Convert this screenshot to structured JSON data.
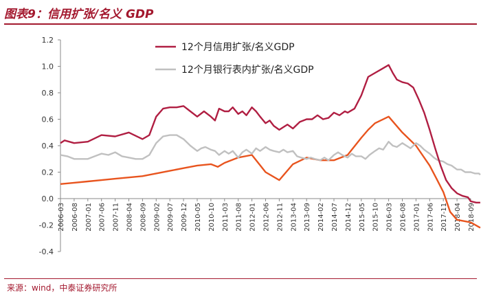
{
  "header": {
    "title": "图表9：信用扩张/名义 GDP"
  },
  "footer": {
    "source": "来源：wind，中泰证券研究所"
  },
  "colors": {
    "brand": "#a3182e",
    "series_credit": "#b01e42",
    "series_bank": "#c0c0c0",
    "series_orange": "#e8541e"
  },
  "chart_data": {
    "type": "line",
    "title": "",
    "xlabel": "",
    "ylabel": "",
    "ylim": [
      -0.4,
      1.2
    ],
    "yticks": [
      1.2,
      1.0,
      0.8,
      0.6,
      0.4,
      0.2,
      0.0,
      -0.2,
      -0.4
    ],
    "x_tick_labels": [
      "2006-03",
      "2006-08",
      "2007-01",
      "2007-06",
      "2007-11",
      "2008-04",
      "2008-09",
      "2009-02",
      "2009-07",
      "2009-12",
      "2010-05",
      "2010-10",
      "2011-03",
      "2011-08",
      "2012-01",
      "2012-06",
      "2012-11",
      "2013-04",
      "2013-09",
      "2014-02",
      "2014-07",
      "2014-12",
      "2015-05",
      "2015-10",
      "2016-03",
      "2016-08",
      "2017-01",
      "2017-06",
      "2017-11",
      "2018-04",
      "2018-09"
    ],
    "grid": false,
    "legend": "top-center",
    "series": [
      {
        "name": "12个月信用扩张/名义GDP",
        "color": "#b01e42",
        "points": [
          [
            0,
            0.42
          ],
          [
            0.3,
            0.44
          ],
          [
            1,
            0.42
          ],
          [
            2,
            0.43
          ],
          [
            3,
            0.48
          ],
          [
            4,
            0.47
          ],
          [
            5,
            0.5
          ],
          [
            6,
            0.45
          ],
          [
            6.5,
            0.48
          ],
          [
            7,
            0.62
          ],
          [
            7.5,
            0.68
          ],
          [
            8,
            0.69
          ],
          [
            8.5,
            0.69
          ],
          [
            9,
            0.7
          ],
          [
            9.5,
            0.66
          ],
          [
            10,
            0.62
          ],
          [
            10.5,
            0.66
          ],
          [
            11,
            0.62
          ],
          [
            11.3,
            0.59
          ],
          [
            11.6,
            0.68
          ],
          [
            12,
            0.66
          ],
          [
            12.3,
            0.66
          ],
          [
            12.6,
            0.69
          ],
          [
            13,
            0.64
          ],
          [
            13.3,
            0.66
          ],
          [
            13.6,
            0.63
          ],
          [
            14,
            0.69
          ],
          [
            14.3,
            0.66
          ],
          [
            14.6,
            0.62
          ],
          [
            15,
            0.57
          ],
          [
            15.3,
            0.59
          ],
          [
            15.6,
            0.55
          ],
          [
            16,
            0.52
          ],
          [
            16.3,
            0.54
          ],
          [
            16.6,
            0.56
          ],
          [
            17,
            0.53
          ],
          [
            17.5,
            0.58
          ],
          [
            18,
            0.6
          ],
          [
            18.4,
            0.6
          ],
          [
            18.8,
            0.63
          ],
          [
            19.2,
            0.6
          ],
          [
            19.6,
            0.61
          ],
          [
            20,
            0.65
          ],
          [
            20.4,
            0.63
          ],
          [
            20.8,
            0.66
          ],
          [
            21,
            0.65
          ],
          [
            21.5,
            0.68
          ],
          [
            22,
            0.78
          ],
          [
            22.5,
            0.92
          ],
          [
            23,
            0.95
          ],
          [
            23.5,
            0.98
          ],
          [
            24,
            1.01
          ],
          [
            24.3,
            0.95
          ],
          [
            24.6,
            0.9
          ],
          [
            25,
            0.88
          ],
          [
            25.4,
            0.87
          ],
          [
            25.8,
            0.84
          ],
          [
            26.2,
            0.75
          ],
          [
            26.6,
            0.65
          ],
          [
            27,
            0.52
          ],
          [
            27.4,
            0.38
          ],
          [
            27.8,
            0.25
          ],
          [
            28.2,
            0.14
          ],
          [
            28.6,
            0.08
          ],
          [
            29,
            0.04
          ],
          [
            29.4,
            0.02
          ],
          [
            29.8,
            0.01
          ],
          [
            30,
            -0.02
          ],
          [
            30.4,
            -0.03
          ],
          [
            30.7,
            -0.03
          ]
        ]
      },
      {
        "name": "12个月银行表内扩张/名义GDP",
        "color": "#c0c0c0",
        "points": [
          [
            0,
            0.33
          ],
          [
            0.5,
            0.32
          ],
          [
            1,
            0.3
          ],
          [
            2,
            0.3
          ],
          [
            2.5,
            0.32
          ],
          [
            3,
            0.34
          ],
          [
            3.5,
            0.33
          ],
          [
            4,
            0.35
          ],
          [
            4.5,
            0.32
          ],
          [
            5,
            0.31
          ],
          [
            5.5,
            0.3
          ],
          [
            6,
            0.3
          ],
          [
            6.5,
            0.33
          ],
          [
            7,
            0.42
          ],
          [
            7.5,
            0.47
          ],
          [
            8,
            0.48
          ],
          [
            8.5,
            0.48
          ],
          [
            9,
            0.45
          ],
          [
            9.5,
            0.4
          ],
          [
            10,
            0.36
          ],
          [
            10.3,
            0.38
          ],
          [
            10.6,
            0.39
          ],
          [
            11,
            0.37
          ],
          [
            11.3,
            0.36
          ],
          [
            11.6,
            0.33
          ],
          [
            12,
            0.36
          ],
          [
            12.3,
            0.34
          ],
          [
            12.6,
            0.36
          ],
          [
            13,
            0.31
          ],
          [
            13.3,
            0.35
          ],
          [
            13.6,
            0.37
          ],
          [
            14,
            0.34
          ],
          [
            14.3,
            0.38
          ],
          [
            14.6,
            0.36
          ],
          [
            15,
            0.39
          ],
          [
            15.3,
            0.37
          ],
          [
            15.6,
            0.36
          ],
          [
            16,
            0.35
          ],
          [
            16.3,
            0.37
          ],
          [
            16.6,
            0.35
          ],
          [
            17,
            0.36
          ],
          [
            17.3,
            0.32
          ],
          [
            17.6,
            0.31
          ],
          [
            18,
            0.3
          ],
          [
            18.3,
            0.31
          ],
          [
            18.6,
            0.3
          ],
          [
            19,
            0.29
          ],
          [
            19.3,
            0.31
          ],
          [
            19.6,
            0.29
          ],
          [
            20,
            0.33
          ],
          [
            20.3,
            0.35
          ],
          [
            20.6,
            0.33
          ],
          [
            21,
            0.31
          ],
          [
            21.3,
            0.34
          ],
          [
            21.6,
            0.32
          ],
          [
            22,
            0.32
          ],
          [
            22.3,
            0.3
          ],
          [
            22.6,
            0.33
          ],
          [
            23,
            0.36
          ],
          [
            23.3,
            0.38
          ],
          [
            23.6,
            0.37
          ],
          [
            24,
            0.43
          ],
          [
            24.3,
            0.4
          ],
          [
            24.6,
            0.39
          ],
          [
            25,
            0.42
          ],
          [
            25.3,
            0.4
          ],
          [
            25.6,
            0.38
          ],
          [
            26,
            0.42
          ],
          [
            26.3,
            0.4
          ],
          [
            26.6,
            0.37
          ],
          [
            27,
            0.34
          ],
          [
            27.3,
            0.31
          ],
          [
            27.6,
            0.29
          ],
          [
            28,
            0.28
          ],
          [
            28.3,
            0.26
          ],
          [
            28.6,
            0.25
          ],
          [
            29,
            0.22
          ],
          [
            29.3,
            0.22
          ],
          [
            29.6,
            0.2
          ],
          [
            30,
            0.2
          ],
          [
            30.3,
            0.19
          ],
          [
            30.6,
            0.19
          ],
          [
            30.7,
            0.18
          ]
        ]
      },
      {
        "color": "#e8541e",
        "points": [
          [
            0,
            0.11
          ],
          [
            1,
            0.12
          ],
          [
            2,
            0.13
          ],
          [
            3,
            0.14
          ],
          [
            4,
            0.15
          ],
          [
            5,
            0.16
          ],
          [
            6,
            0.17
          ],
          [
            7,
            0.19
          ],
          [
            8,
            0.21
          ],
          [
            9,
            0.23
          ],
          [
            10,
            0.25
          ],
          [
            11,
            0.26
          ],
          [
            11.5,
            0.24
          ],
          [
            12,
            0.27
          ],
          [
            13,
            0.31
          ],
          [
            14,
            0.33
          ],
          [
            15,
            0.2
          ],
          [
            16,
            0.14
          ],
          [
            17,
            0.26
          ],
          [
            18,
            0.31
          ],
          [
            19,
            0.29
          ],
          [
            20,
            0.29
          ],
          [
            21,
            0.33
          ],
          [
            22,
            0.46
          ],
          [
            22.5,
            0.52
          ],
          [
            23,
            0.57
          ],
          [
            24,
            0.62
          ],
          [
            25,
            0.5
          ],
          [
            26,
            0.4
          ],
          [
            27,
            0.25
          ],
          [
            27.5,
            0.15
          ],
          [
            28,
            0.05
          ],
          [
            28.5,
            -0.1
          ],
          [
            29,
            -0.16
          ],
          [
            30,
            -0.18
          ],
          [
            30.7,
            -0.22
          ]
        ]
      }
    ]
  }
}
